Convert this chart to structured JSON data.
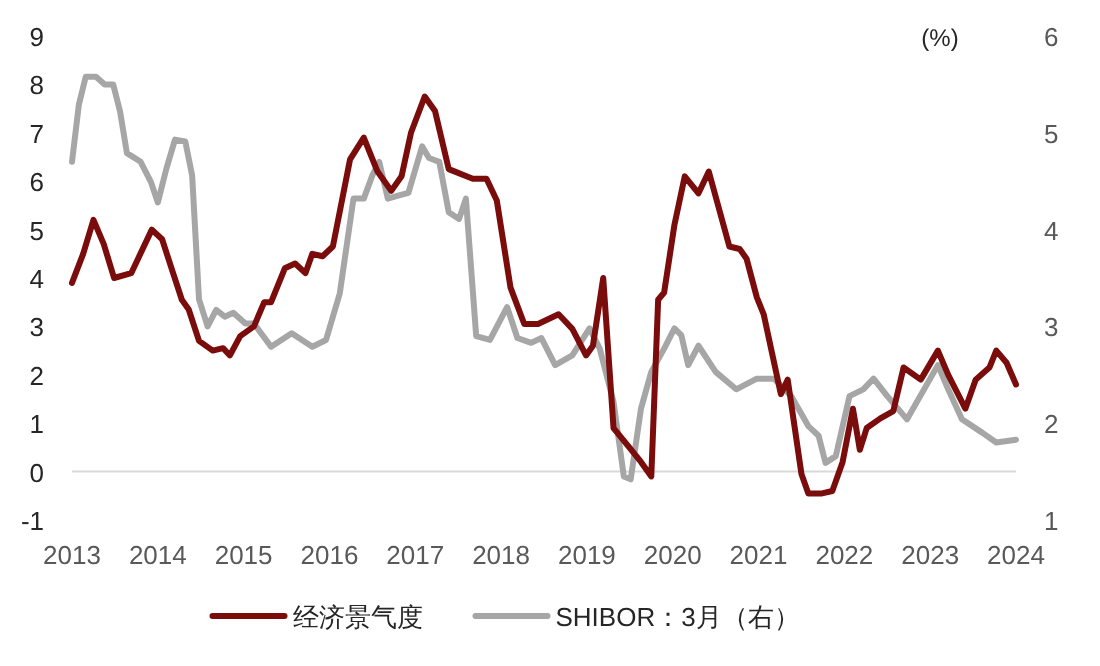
{
  "chart_data": {
    "type": "line",
    "y2label": "(%)",
    "legend": "bottom",
    "xlim": [
      2013,
      2024
    ],
    "xticks": [
      2013,
      2014,
      2015,
      2016,
      2017,
      2018,
      2019,
      2020,
      2021,
      2022,
      2023,
      2024
    ],
    "ylim": [
      -1,
      9
    ],
    "yticks": [
      -1,
      0,
      1,
      2,
      3,
      4,
      5,
      6,
      7,
      8,
      9
    ],
    "y2lim": [
      1,
      6
    ],
    "y2ticks": [
      1,
      2,
      3,
      4,
      5,
      6
    ],
    "ref_lines": [
      {
        "axis": "y",
        "value": 0,
        "color": "#d9d9d9"
      }
    ],
    "series": [
      {
        "name": "经济景气度",
        "color": "#7b0c0c",
        "axis": "y",
        "x": [
          2013.0,
          2013.13,
          2013.25,
          2013.37,
          2013.49,
          2013.69,
          2013.93,
          2014.05,
          2014.16,
          2014.28,
          2014.36,
          2014.48,
          2014.64,
          2014.76,
          2014.84,
          2014.96,
          2015.12,
          2015.24,
          2015.32,
          2015.48,
          2015.6,
          2015.72,
          2015.8,
          2015.92,
          2016.04,
          2016.24,
          2016.4,
          2016.56,
          2016.72,
          2016.84,
          2016.95,
          2017.11,
          2017.23,
          2017.39,
          2017.67,
          2017.83,
          2017.95,
          2018.11,
          2018.27,
          2018.43,
          2018.67,
          2018.83,
          2018.99,
          2019.07,
          2019.19,
          2019.31,
          2019.47,
          2019.63,
          2019.75,
          2019.83,
          2019.9,
          2020.02,
          2020.14,
          2020.3,
          2020.42,
          2020.66,
          2020.78,
          2020.86,
          2020.98,
          2021.06,
          2021.26,
          2021.34,
          2021.5,
          2021.58,
          2021.74,
          2021.86,
          2021.98,
          2022.1,
          2022.18,
          2022.26,
          2022.42,
          2022.57,
          2022.69,
          2022.89,
          2023.09,
          2023.21,
          2023.41,
          2023.53,
          2023.69,
          2023.77,
          2023.89,
          2024.0
        ],
        "values": [
          3.9,
          4.5,
          5.2,
          4.7,
          4.0,
          4.1,
          5.0,
          4.8,
          4.2,
          3.55,
          3.35,
          2.7,
          2.5,
          2.55,
          2.4,
          2.8,
          3.0,
          3.5,
          3.5,
          4.2,
          4.3,
          4.1,
          4.5,
          4.45,
          4.65,
          6.45,
          6.9,
          6.2,
          5.8,
          6.1,
          7.0,
          7.75,
          7.45,
          6.25,
          6.05,
          6.05,
          5.6,
          3.8,
          3.05,
          3.05,
          3.25,
          2.95,
          2.4,
          2.6,
          4.0,
          0.9,
          0.55,
          0.2,
          -0.1,
          3.55,
          3.7,
          5.1,
          6.1,
          5.75,
          6.2,
          4.65,
          4.6,
          4.4,
          3.6,
          3.25,
          1.6,
          1.9,
          -0.05,
          -0.45,
          -0.45,
          -0.4,
          0.2,
          1.3,
          0.45,
          0.9,
          1.1,
          1.25,
          2.15,
          1.9,
          2.5,
          2.0,
          1.3,
          1.9,
          2.15,
          2.5,
          2.25,
          1.8
        ]
      },
      {
        "name": "SHIBOR：3月（右）",
        "color": "#a6a6a6",
        "axis": "y2",
        "x": [
          2013.0,
          2013.08,
          2013.16,
          2013.28,
          2013.38,
          2013.48,
          2013.56,
          2013.64,
          2013.8,
          2013.92,
          2014.0,
          2014.1,
          2014.2,
          2014.32,
          2014.4,
          2014.48,
          2014.58,
          2014.68,
          2014.78,
          2014.88,
          2015.02,
          2015.12,
          2015.32,
          2015.56,
          2015.8,
          2015.96,
          2016.12,
          2016.28,
          2016.4,
          2016.5,
          2016.58,
          2016.68,
          2016.8,
          2016.92,
          2017.08,
          2017.16,
          2017.28,
          2017.39,
          2017.51,
          2017.59,
          2017.71,
          2017.87,
          2018.07,
          2018.19,
          2018.35,
          2018.47,
          2018.63,
          2018.83,
          2019.03,
          2019.15,
          2019.31,
          2019.43,
          2019.51,
          2019.63,
          2019.75,
          2019.9,
          2020.02,
          2020.1,
          2020.18,
          2020.3,
          2020.5,
          2020.74,
          2020.98,
          2021.18,
          2021.38,
          2021.58,
          2021.7,
          2021.78,
          2021.9,
          2022.06,
          2022.22,
          2022.34,
          2022.5,
          2022.73,
          2023.09,
          2023.21,
          2023.37,
          2023.61,
          2023.77,
          2024.0
        ],
        "values": [
          4.7,
          5.29,
          5.58,
          5.58,
          5.5,
          5.5,
          5.22,
          4.79,
          4.7,
          4.49,
          4.28,
          4.63,
          4.93,
          4.91,
          4.56,
          3.28,
          3.0,
          3.17,
          3.1,
          3.14,
          3.03,
          3.03,
          2.79,
          2.93,
          2.79,
          2.86,
          3.34,
          4.32,
          4.32,
          4.56,
          4.7,
          4.32,
          4.35,
          4.38,
          4.86,
          4.74,
          4.7,
          4.18,
          4.11,
          4.32,
          2.9,
          2.86,
          3.2,
          2.88,
          2.83,
          2.88,
          2.6,
          2.7,
          2.98,
          2.77,
          2.22,
          1.45,
          1.42,
          2.15,
          2.53,
          2.77,
          2.98,
          2.91,
          2.6,
          2.8,
          2.53,
          2.35,
          2.46,
          2.46,
          2.28,
          1.97,
          1.87,
          1.59,
          1.66,
          2.28,
          2.35,
          2.46,
          2.28,
          2.04,
          2.6,
          2.35,
          2.04,
          1.9,
          1.8,
          1.83
        ]
      }
    ]
  }
}
